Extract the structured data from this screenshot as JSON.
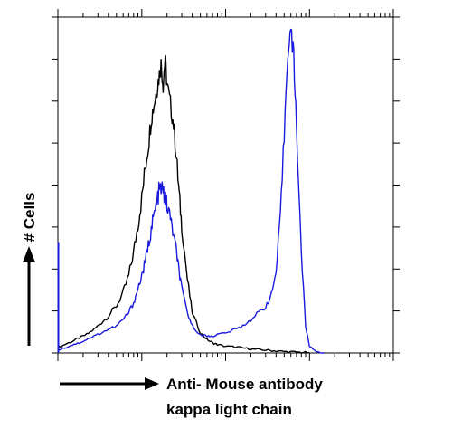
{
  "chart_data": {
    "type": "line",
    "title": "",
    "xlabel_line1": "Anti- Mouse antibody",
    "xlabel_line2": "kappa light chain",
    "ylabel": "# Cells",
    "xscale": "log",
    "xlim": [
      1,
      10000
    ],
    "ylim": [
      0,
      100
    ],
    "grid": false,
    "legend": "none",
    "series": [
      {
        "color": "#000000",
        "x": [
          1.0,
          1.2,
          1.5,
          1.8,
          2.2,
          2.7,
          3.3,
          4.0,
          5.0,
          6.0,
          7.0,
          8.0,
          9.0,
          10,
          11,
          12,
          13,
          14,
          15,
          16,
          17,
          18,
          19,
          20,
          22,
          24,
          26,
          28,
          30,
          35,
          40,
          50,
          60,
          70,
          80,
          100,
          130,
          160,
          200,
          250,
          320,
          400,
          500,
          630,
          800,
          1000
        ],
        "y": [
          1.5,
          2.5,
          3.5,
          4.5,
          5.5,
          7.0,
          9.0,
          11.0,
          14.0,
          18.0,
          23.0,
          30.0,
          38.0,
          46.0,
          55.0,
          62.0,
          70.0,
          74.0,
          78.0,
          82.0,
          86.0,
          80.0,
          88.0,
          80.0,
          74.0,
          68.0,
          58.0,
          47.0,
          38.0,
          22.0,
          12.0,
          6.0,
          4.0,
          3.0,
          2.5,
          2.0,
          1.8,
          1.5,
          1.2,
          1.0,
          0.8,
          0.6,
          0.4,
          0.3,
          0.2,
          0.1
        ]
      },
      {
        "color": "#1a1adf",
        "x": [
          1.0,
          1.2,
          1.5,
          1.8,
          2.2,
          2.7,
          3.3,
          4.0,
          5.0,
          6.0,
          7.0,
          8.0,
          9.0,
          10,
          11,
          12,
          13,
          14,
          15,
          16,
          17,
          18,
          19,
          20,
          22,
          24,
          26,
          28,
          30,
          35,
          40,
          50,
          60,
          70,
          80,
          100,
          130,
          160,
          200,
          250,
          300,
          350,
          400,
          450,
          500,
          550,
          600,
          650,
          700,
          800,
          900,
          1000,
          1200,
          1500
        ],
        "y": [
          1.0,
          1.5,
          2.5,
          3.0,
          4.0,
          5.0,
          6.0,
          7.0,
          8.0,
          10.0,
          12.0,
          15.0,
          19.0,
          23.0,
          27.0,
          32.0,
          37.0,
          41.0,
          44.0,
          48.0,
          49.0,
          48.0,
          46.0,
          44.0,
          40.0,
          35.0,
          30.0,
          24.0,
          19.0,
          12.0,
          8.0,
          5.5,
          5.0,
          5.0,
          5.5,
          6.0,
          7.0,
          8.0,
          10.0,
          12.0,
          14.0,
          17.0,
          24.0,
          40.0,
          65.0,
          90.0,
          96.0,
          88.0,
          68.0,
          30.0,
          8.0,
          2.0,
          0.5,
          0.0
        ]
      }
    ]
  }
}
